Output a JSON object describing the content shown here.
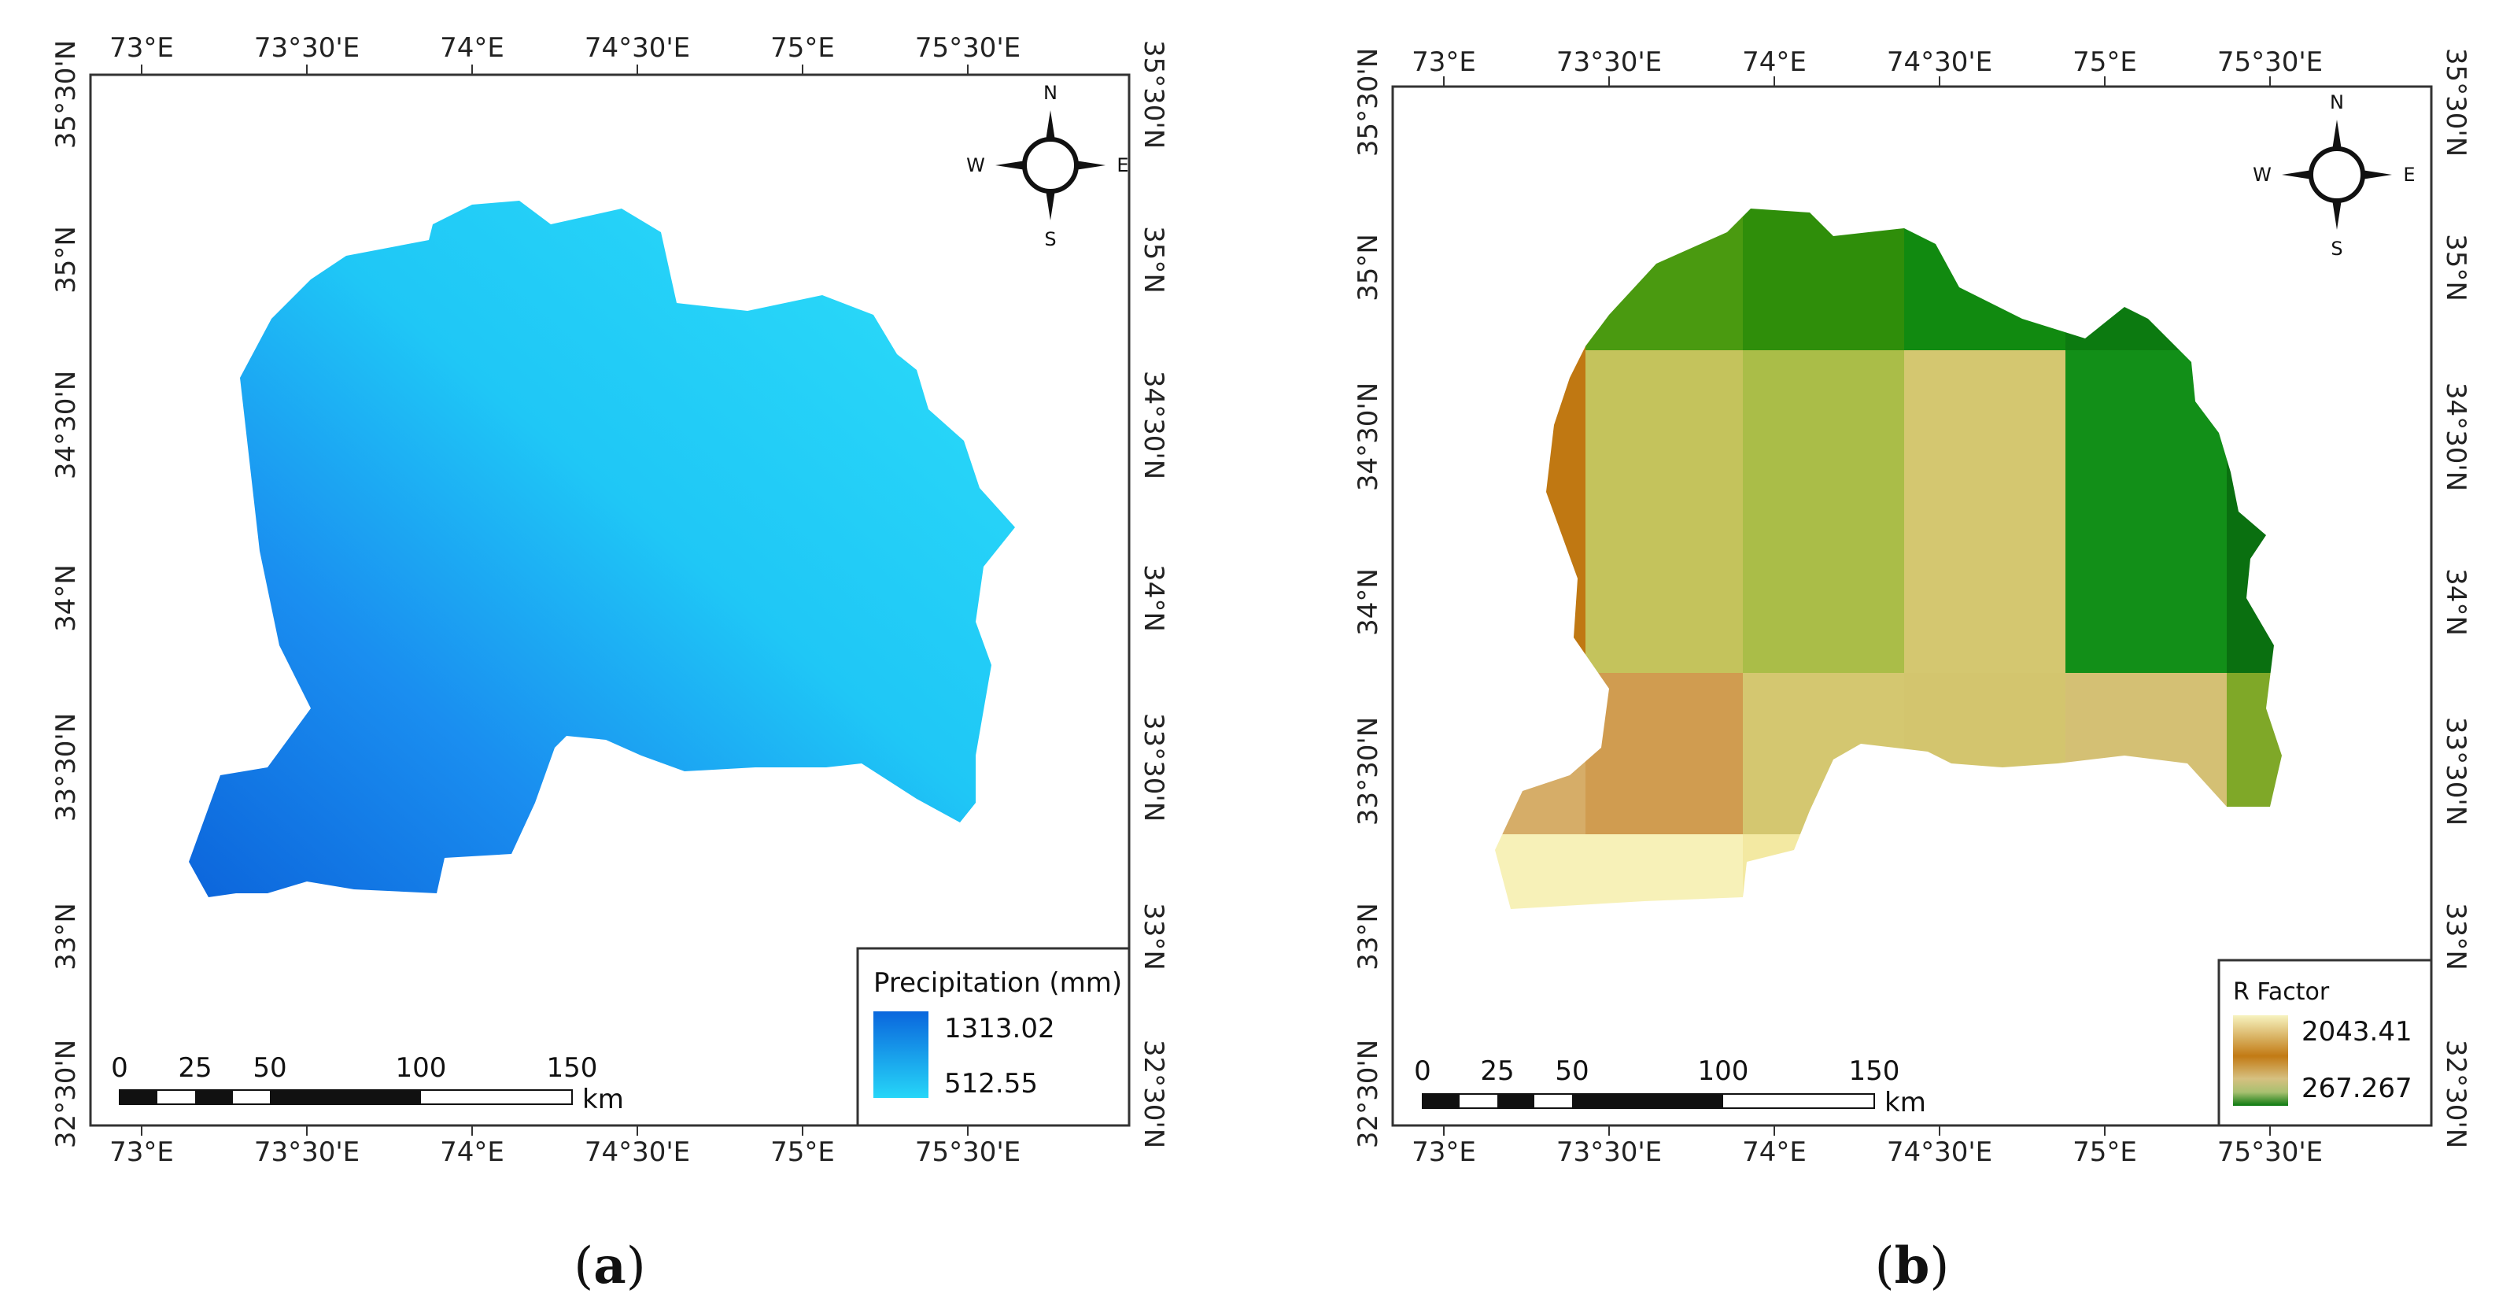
{
  "maps": [
    {
      "id": "a",
      "caption_letter": "a",
      "lon_ticks_top": [
        "73°E",
        "73°30'E",
        "74°E",
        "74°30'E",
        "75°E",
        "75°30'E"
      ],
      "lon_ticks_bottom": [
        "73°E",
        "73°30'E",
        "74°E",
        "74°30'E",
        "75°E",
        "75°30'E"
      ],
      "lat_ticks_left": [
        "35°30'N",
        "35°N",
        "34°30'N",
        "34°N",
        "33°30'N",
        "33°N",
        "32°30'N"
      ],
      "lat_ticks_right": [
        "35°30'N",
        "35°N",
        "34°30'N",
        "34°N",
        "33°30'N",
        "33°N",
        "32°30'N"
      ],
      "compass": {
        "n": "N",
        "s": "S",
        "e": "E",
        "w": "W"
      },
      "legend": {
        "title": "Precipitation (mm)",
        "max": "1313.02",
        "min": "512.55",
        "color_max": "#0a66dd",
        "color_min": "#26d6f8"
      },
      "scale_bar": {
        "labels": [
          "0",
          "25",
          "50",
          "100",
          "150"
        ],
        "unit": "km"
      }
    },
    {
      "id": "b",
      "caption_letter": "b",
      "lon_ticks_top": [
        "73°E",
        "73°30'E",
        "74°E",
        "74°30'E",
        "75°E",
        "75°30'E"
      ],
      "lon_ticks_bottom": [
        "73°E",
        "73°30'E",
        "74°E",
        "74°30'E",
        "75°E",
        "75°30'E"
      ],
      "lat_ticks_left": [
        "35°30'N",
        "35°N",
        "34°30'N",
        "34°N",
        "33°30'N",
        "33°N",
        "32°30'N"
      ],
      "lat_ticks_right": [
        "35°30'N",
        "35°N",
        "34°30'N",
        "34°N",
        "33°30'N",
        "33°N",
        "32°30'N"
      ],
      "compass": {
        "n": "N",
        "s": "S",
        "e": "E",
        "w": "W"
      },
      "legend": {
        "title": "R Factor",
        "max": "2043.41",
        "min": "267.267",
        "color_max": "#f5f0b8",
        "color_mid": "#c27a14",
        "color_min": "#0c7a10"
      },
      "scale_bar": {
        "labels": [
          "0",
          "25",
          "50",
          "100",
          "150"
        ],
        "unit": "km"
      }
    }
  ]
}
